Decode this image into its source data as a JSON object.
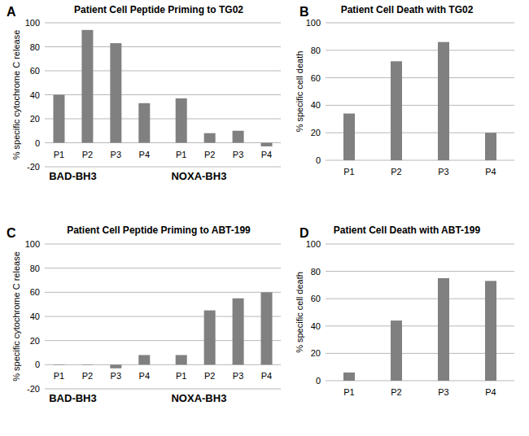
{
  "chart_data": [
    {
      "type": "bar",
      "panel_label": "A",
      "title": "Patient Cell Peptide Priming to TG02",
      "y_label": "% specific cytochrome C release",
      "categories": [
        "P1",
        "P2",
        "P3",
        "P4"
      ],
      "series": [
        {
          "name": "BAD-BH3",
          "color": "#808080",
          "values": [
            40,
            94,
            83,
            33
          ]
        },
        {
          "name": "NOXA-BH3",
          "color": "#808080",
          "values": [
            37,
            8,
            10,
            -3
          ]
        }
      ],
      "ylim": [
        -20,
        100
      ],
      "yticks": [
        -20,
        0,
        20,
        40,
        60,
        80,
        100
      ],
      "grid": true
    },
    {
      "type": "bar",
      "panel_label": "B",
      "title": "Patient Cell  Death with TG02",
      "y_label": "% specific cell death",
      "categories": [
        "P1",
        "P2",
        "P3",
        "P4"
      ],
      "values": [
        34,
        72,
        86,
        20
      ],
      "color": "#808080",
      "ylim": [
        0,
        100
      ],
      "yticks": [
        0,
        20,
        40,
        60,
        80,
        100
      ],
      "grid": true
    },
    {
      "type": "bar",
      "panel_label": "C",
      "title": "Patient Cell Peptide Priming to ABT-199",
      "y_label": "% specific cytochrome C release",
      "categories": [
        "P1",
        "P2",
        "P3",
        "P4"
      ],
      "series": [
        {
          "name": "BAD-BH3",
          "color": "#808080",
          "values": [
            0,
            0,
            -3,
            8
          ]
        },
        {
          "name": "NOXA-BH3",
          "color": "#808080",
          "values": [
            8,
            45,
            55,
            60
          ]
        }
      ],
      "ylim": [
        -20,
        100
      ],
      "yticks": [
        -20,
        0,
        20,
        40,
        60,
        80,
        100
      ],
      "grid": true
    },
    {
      "type": "bar",
      "panel_label": "D",
      "title": "Patient Cell Death with ABT-199",
      "y_label": "% specific cell death",
      "categories": [
        "P1",
        "P2",
        "P3",
        "P4"
      ],
      "values": [
        6,
        44,
        75,
        73
      ],
      "color": "#808080",
      "ylim": [
        0,
        100
      ],
      "yticks": [
        0,
        20,
        40,
        60,
        80,
        100
      ],
      "grid": true
    }
  ]
}
